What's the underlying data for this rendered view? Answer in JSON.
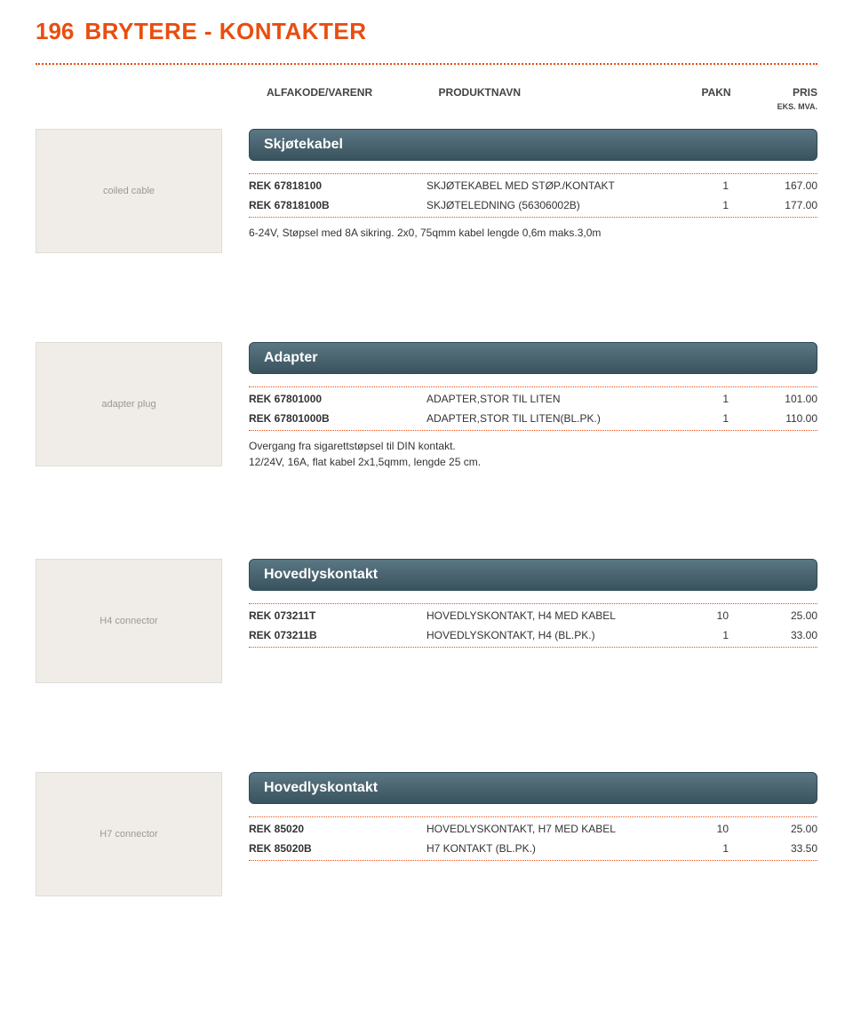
{
  "page": {
    "number": "196",
    "title": "BRYTERE - KONTAKTER"
  },
  "columns": {
    "alfakode": "ALFAKODE/VARENR",
    "produktnavn": "PRODUKTNAVN",
    "pakn": "PAKN",
    "pris": "PRIS",
    "eks": "EKS. MVA."
  },
  "colors": {
    "accent": "#e84e0f",
    "header_bg_top": "#5a7884",
    "header_bg_bottom": "#3a545e",
    "text": "#333333",
    "bg": "#ffffff"
  },
  "sections": [
    {
      "heading": "Skjøtekabel",
      "image_alt": "coiled cable",
      "rows": [
        {
          "code": "REK   67818100",
          "name": "SKJØTEKABEL MED STØP./KONTAKT",
          "pakn": "1",
          "pris": "167.00"
        },
        {
          "code": "REK   67818100B",
          "name": "SKJØTELEDNING (56306002B)",
          "pakn": "1",
          "pris": "177.00"
        }
      ],
      "desc": [
        "6-24V, Støpsel med 8A sikring.  2x0, 75qmm kabel lengde 0,6m maks.3,0m"
      ]
    },
    {
      "heading": "Adapter",
      "image_alt": "adapter plug",
      "rows": [
        {
          "code": "REK   67801000",
          "name": "ADAPTER,STOR TIL LITEN",
          "pakn": "1",
          "pris": "101.00"
        },
        {
          "code": "REK   67801000B",
          "name": "ADAPTER,STOR TIL LITEN(BL.PK.)",
          "pakn": "1",
          "pris": "110.00"
        }
      ],
      "desc": [
        "Overgang fra sigarettstøpsel til DIN kontakt.",
        "12/24V, 16A, flat kabel 2x1,5qmm, lengde 25 cm."
      ]
    },
    {
      "heading": "Hovedlyskontakt",
      "image_alt": "H4 connector",
      "rows": [
        {
          "code": "REK   073211T",
          "name": "HOVEDLYSKONTAKT, H4 MED KABEL",
          "pakn": "10",
          "pris": "25.00"
        },
        {
          "code": "REK   073211B",
          "name": "HOVEDLYSKONTAKT, H4   (BL.PK.)",
          "pakn": "1",
          "pris": "33.00"
        }
      ],
      "desc": []
    },
    {
      "heading": "Hovedlyskontakt",
      "image_alt": "H7 connector",
      "rows": [
        {
          "code": "REK   85020",
          "name": "HOVEDLYSKONTAKT, H7 MED KABEL",
          "pakn": "10",
          "pris": "25.00"
        },
        {
          "code": "REK   85020B",
          "name": "H7 KONTAKT (BL.PK.)",
          "pakn": "1",
          "pris": "33.50"
        }
      ],
      "desc": []
    }
  ]
}
